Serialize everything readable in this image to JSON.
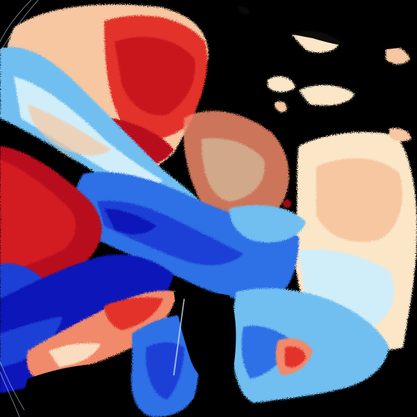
{
  "image": {
    "kind": "doppler-radar-velocity-mosaic",
    "background": "#000000",
    "palette": {
      "deep_red": "#b80f1e",
      "red": "#e2332c",
      "salmon": "#f08a6a",
      "peach": "#f6c7a0",
      "cream": "#fbe6c8",
      "pale_cyan": "#cfeefa",
      "sky_blue": "#6fbff0",
      "blue": "#2f6fe6",
      "royal_blue": "#1d3fd6",
      "navy": "#0d14b8"
    }
  }
}
